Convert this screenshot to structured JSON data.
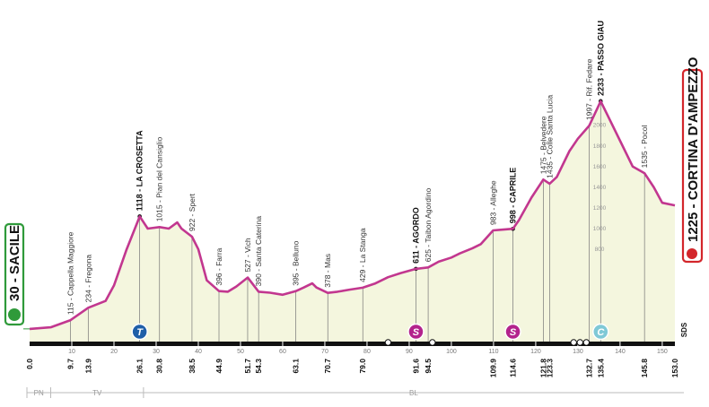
{
  "chart_data": {
    "type": "area",
    "start": "30 - SACILE",
    "finish": "1225 - CORTINA D'AMPEZZO",
    "x": [
      0,
      5,
      9.7,
      13.9,
      18,
      20,
      23,
      26.1,
      28,
      30.8,
      33,
      35,
      36,
      38.5,
      40,
      42,
      44.9,
      47,
      49,
      51.7,
      54.3,
      57,
      60,
      63.1,
      65,
      67,
      68,
      70.7,
      73,
      76,
      79,
      82,
      85,
      88,
      91.6,
      94.5,
      97,
      100,
      102,
      105,
      107,
      109.9,
      112,
      114.6,
      116,
      119,
      121.8,
      123.3,
      125,
      128,
      130,
      132.7,
      135.4,
      137,
      140,
      143,
      145.8,
      148,
      150,
      153
    ],
    "values": [
      30,
      45,
      115,
      234,
      300,
      450,
      800,
      1118,
      1000,
      1015,
      1000,
      1060,
      1000,
      922,
      800,
      500,
      396,
      390,
      440,
      527,
      390,
      380,
      360,
      395,
      430,
      470,
      430,
      378,
      390,
      410,
      429,
      470,
      530,
      570,
      611,
      625,
      680,
      720,
      760,
      810,
      850,
      983,
      990,
      998,
      1080,
      1300,
      1475,
      1435,
      1500,
      1750,
      1870,
      1997,
      2233,
      2100,
      1850,
      1600,
      1535,
      1400,
      1250,
      1225
    ],
    "color": "#c2378f",
    "fill": "#f4f6de",
    "xlim": [
      0,
      153
    ],
    "ylim": [
      -110,
      2400
    ],
    "xticks": [
      10,
      20,
      30,
      40,
      50,
      60,
      70,
      80,
      90,
      100,
      110,
      120,
      130,
      140,
      150
    ],
    "yticks": [
      800,
      1000,
      1200,
      1400,
      1600,
      1800,
      2000
    ],
    "waypoints": [
      {
        "km": {
          "value": 0,
          "label": "0.0"
        }
      },
      {
        "km": 9.7,
        "label": "115 - Cappella Maggiore"
      },
      {
        "km": 13.9,
        "label": "234 - Fregona"
      },
      {
        "km": 26.1,
        "label": "1118 - LA CROSETTA",
        "major": true
      },
      {
        "km": 30.8,
        "label": "1015 - Pian del Cansiglio"
      },
      {
        "km": 38.5,
        "label": "922 - Spert"
      },
      {
        "km": 44.9,
        "label": "396 - Farra"
      },
      {
        "km": 51.7,
        "label": "527 - Vich"
      },
      {
        "km": 54.3,
        "label": "390 - Santa Caterina"
      },
      {
        "km": 63.1,
        "label": "395 - Belluno"
      },
      {
        "km": 70.7,
        "label": "378 - Mas"
      },
      {
        "km": {
          "value": 79,
          "label": "79.0"
        },
        "label": "429 - La Stanga"
      },
      {
        "km": 91.6,
        "label": "611 - AGORDO",
        "major": true
      },
      {
        "km": 94.5,
        "label": "625 - Taibon Agordino"
      },
      {
        "km": 109.9,
        "label": "983 - Alleghe"
      },
      {
        "km": 114.6,
        "label": "998 - CAPRILE",
        "major": true
      },
      {
        "km": 121.8,
        "label": "1475 - Belvedere"
      },
      {
        "km": 123.3,
        "label": "1435 - Colle Santa Lucia"
      },
      {
        "km": 132.7,
        "label": "1997 - Rif. Fedare"
      },
      {
        "km": 135.4,
        "label": "2233 - PASSO GIAU",
        "major": true
      },
      {
        "km": 145.8,
        "label": "1535 - Pocol"
      },
      {
        "km": {
          "value": 153,
          "label": "153.0"
        }
      }
    ],
    "symbols": [
      {
        "km": 26.1,
        "letter": "T",
        "color": "#1f5fa8"
      },
      {
        "km": 91.6,
        "letter": "S",
        "color": "#b3238c"
      },
      {
        "km": 114.6,
        "letter": "S",
        "color": "#b3238c"
      },
      {
        "km": 135.4,
        "letter": "C",
        "color": "#7fc9d6"
      }
    ],
    "provinces": [
      "PN",
      "TV",
      "BL"
    ],
    "note": "SDS"
  }
}
